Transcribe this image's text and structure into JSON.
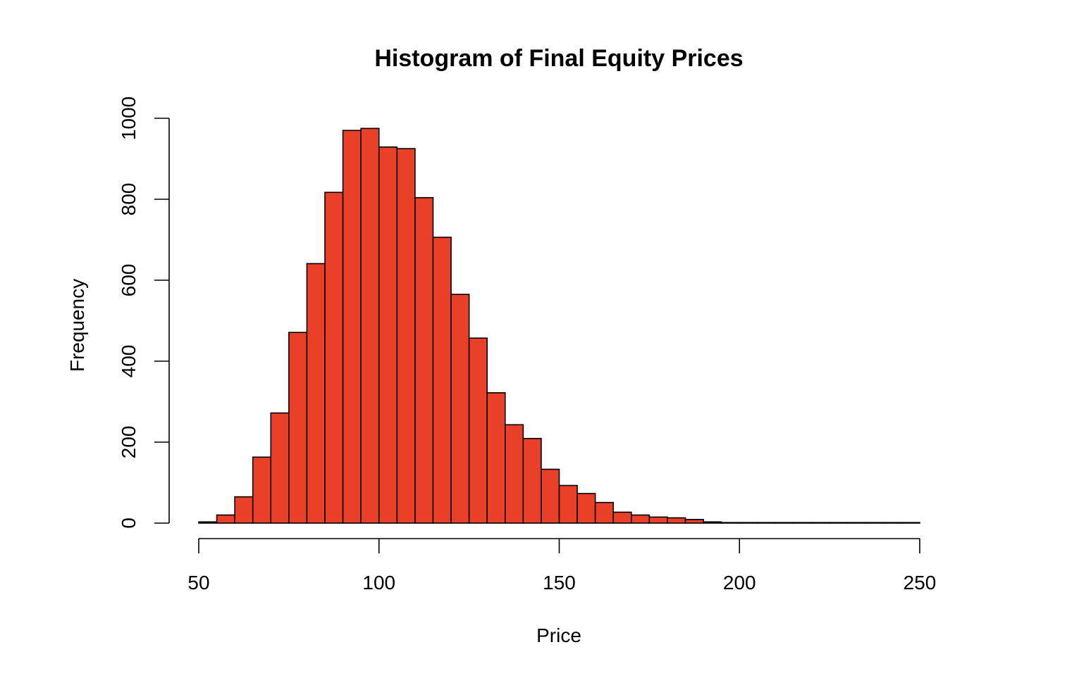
{
  "chart_data": {
    "type": "bar",
    "title": "Histogram of Final Equity Prices",
    "xlabel": "Price",
    "ylabel": "Frequency",
    "bar_color": "#EA4027",
    "bar_border_color": "#000000",
    "xlim": [
      50,
      250
    ],
    "ylim": [
      0,
      1000
    ],
    "x_ticks": [
      50,
      100,
      150,
      200,
      250
    ],
    "y_ticks": [
      0,
      200,
      400,
      600,
      800,
      1000
    ],
    "bin_width": 5,
    "bins": [
      {
        "start": 50,
        "end": 55,
        "value": 3
      },
      {
        "start": 55,
        "end": 60,
        "value": 20
      },
      {
        "start": 60,
        "end": 65,
        "value": 65
      },
      {
        "start": 65,
        "end": 70,
        "value": 163
      },
      {
        "start": 70,
        "end": 75,
        "value": 272
      },
      {
        "start": 75,
        "end": 80,
        "value": 471
      },
      {
        "start": 80,
        "end": 85,
        "value": 641
      },
      {
        "start": 85,
        "end": 90,
        "value": 817
      },
      {
        "start": 90,
        "end": 95,
        "value": 970
      },
      {
        "start": 95,
        "end": 100,
        "value": 975
      },
      {
        "start": 100,
        "end": 105,
        "value": 929
      },
      {
        "start": 105,
        "end": 110,
        "value": 925
      },
      {
        "start": 110,
        "end": 115,
        "value": 804
      },
      {
        "start": 115,
        "end": 120,
        "value": 706
      },
      {
        "start": 120,
        "end": 125,
        "value": 565
      },
      {
        "start": 125,
        "end": 130,
        "value": 457
      },
      {
        "start": 130,
        "end": 135,
        "value": 322
      },
      {
        "start": 135,
        "end": 140,
        "value": 243
      },
      {
        "start": 140,
        "end": 145,
        "value": 209
      },
      {
        "start": 145,
        "end": 150,
        "value": 133
      },
      {
        "start": 150,
        "end": 155,
        "value": 93
      },
      {
        "start": 155,
        "end": 160,
        "value": 73
      },
      {
        "start": 160,
        "end": 165,
        "value": 51
      },
      {
        "start": 165,
        "end": 170,
        "value": 27
      },
      {
        "start": 170,
        "end": 175,
        "value": 20
      },
      {
        "start": 175,
        "end": 180,
        "value": 15
      },
      {
        "start": 180,
        "end": 185,
        "value": 13
      },
      {
        "start": 185,
        "end": 190,
        "value": 9
      },
      {
        "start": 190,
        "end": 195,
        "value": 3
      },
      {
        "start": 195,
        "end": 200,
        "value": 1
      },
      {
        "start": 200,
        "end": 205,
        "value": 1
      },
      {
        "start": 205,
        "end": 210,
        "value": 1
      },
      {
        "start": 210,
        "end": 215,
        "value": 1
      },
      {
        "start": 215,
        "end": 220,
        "value": 1
      },
      {
        "start": 220,
        "end": 225,
        "value": 0
      },
      {
        "start": 225,
        "end": 230,
        "value": 0
      },
      {
        "start": 230,
        "end": 235,
        "value": 0
      },
      {
        "start": 235,
        "end": 240,
        "value": 0
      },
      {
        "start": 240,
        "end": 245,
        "value": 0
      },
      {
        "start": 245,
        "end": 250,
        "value": 1
      }
    ],
    "grid": false,
    "legend": false
  }
}
